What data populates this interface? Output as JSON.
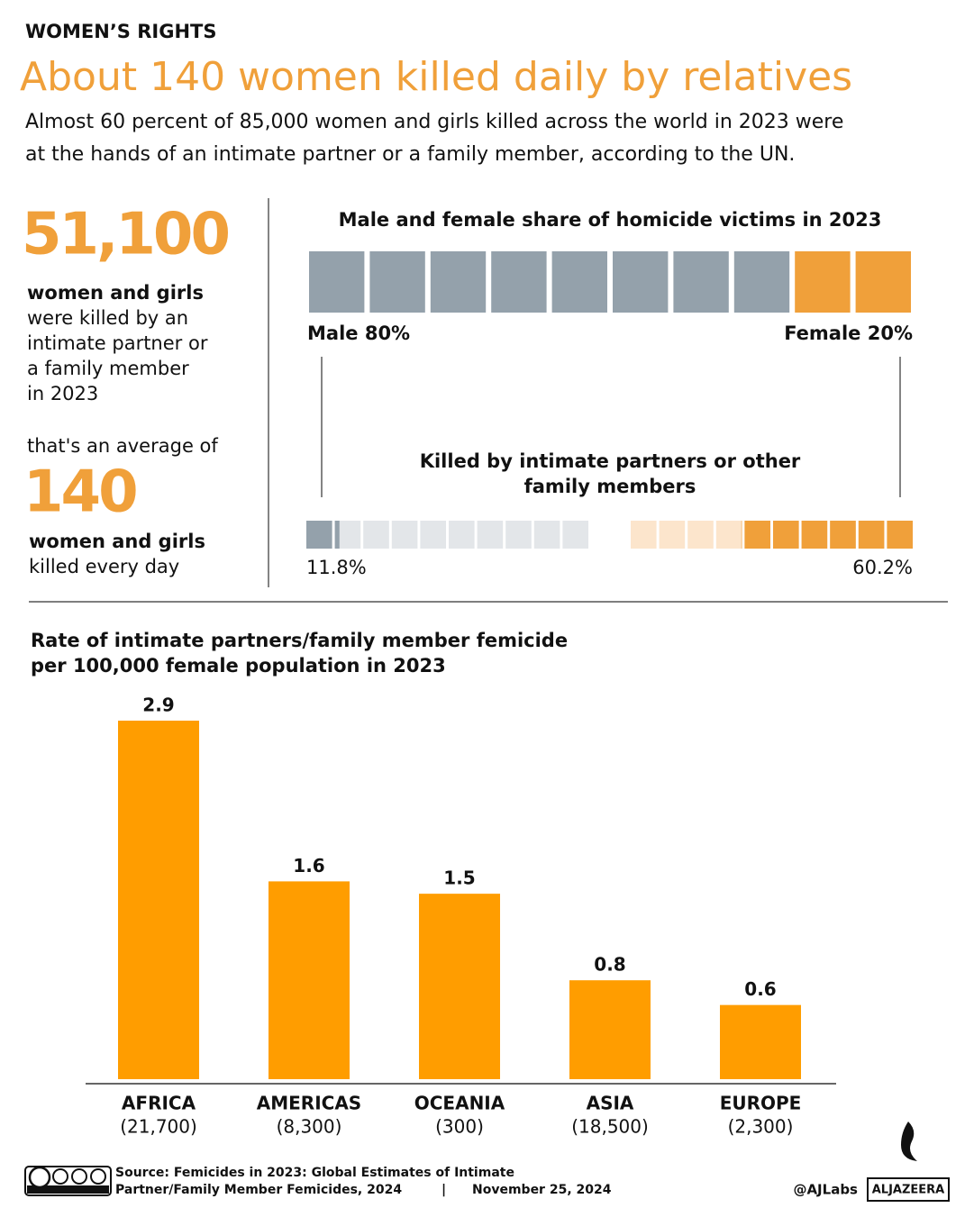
{
  "header": {
    "kicker": "WOMEN’S RIGHTS",
    "title": "About 140 women killed daily by relatives",
    "subtitle_lines": [
      "Almost 60 percent of 85,000 women and girls killed across the world in 2023 were",
      "at the hands of an intimate partner or a family member, according to the UN."
    ]
  },
  "stats": {
    "number1": "51,100",
    "bold1": "women and girls",
    "lines1": [
      "were killed by an",
      "intimate partner or",
      "a family member",
      "in 2023"
    ],
    "lead2": "that's an average of",
    "number2": "140",
    "bold2": "women and girls",
    "lines2": [
      "killed every day"
    ]
  },
  "chart_data": [
    {
      "type": "waffle",
      "title": "Male and female share of homicide victims in 2023",
      "series": [
        {
          "name": "Male",
          "color": "#94a1ab",
          "values": [
            80
          ],
          "value_labels": [
            "80%"
          ]
        },
        {
          "name": "Female",
          "color": "#f0a03a",
          "values": [
            20
          ],
          "value_labels": [
            "20%"
          ]
        }
      ]
    },
    {
      "type": "waffle-split",
      "title_lines": [
        "Killed by intimate partners or other",
        "family members"
      ],
      "series": [
        {
          "color": "#94a1ab",
          "background": "#e3e6e9",
          "values": [
            11.8
          ],
          "value_labels": [
            "11.8%"
          ]
        },
        {
          "color": "#f0a03a",
          "background": "#fce5cc",
          "values": [
            60.2
          ],
          "value_labels": [
            "60.2%"
          ]
        }
      ]
    },
    {
      "type": "bar",
      "title_lines": [
        "Rate of intimate partners/family member femicide",
        "per 100,000 female population in 2023"
      ],
      "categories": [
        "AFRICA",
        "AMERICAS",
        "OCEANIA",
        "ASIA",
        "EUROPE"
      ],
      "category_notes": [
        "(21,700)",
        "(8,300)",
        "(300)",
        "(18,500)",
        "(2,300)"
      ],
      "values": [
        2.9,
        1.6,
        1.5,
        0.8,
        0.6
      ],
      "color": "#ff9d00"
    }
  ],
  "footer": {
    "source_lines": [
      "Source:  Femicides in 2023: Global Estimates of Intimate",
      "Partner/Family Member Femicides, 2024"
    ],
    "separator": "|",
    "date": "November 25, 2024",
    "handle": "@AJLabs",
    "brand": "ALJAZEERA"
  }
}
